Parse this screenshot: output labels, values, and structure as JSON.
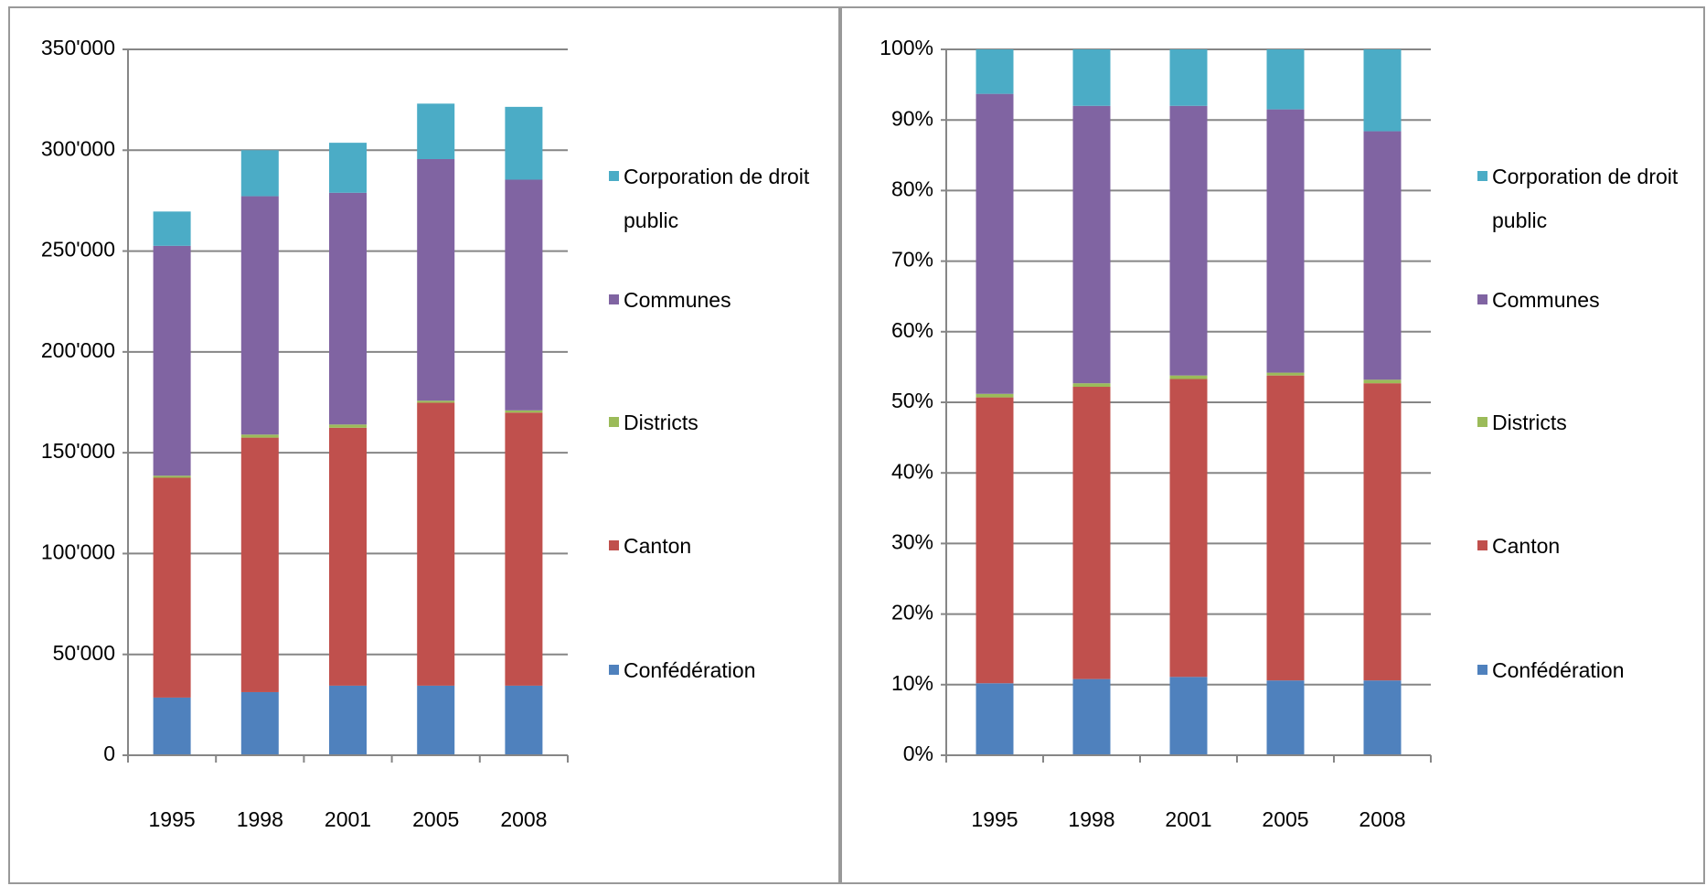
{
  "chart_data": [
    {
      "type": "bar",
      "stacked": true,
      "legend": "right",
      "grid": true,
      "categories": [
        "1995",
        "1998",
        "2001",
        "2005",
        "2008"
      ],
      "series": [
        {
          "name": "Confédération",
          "color": "#4f81bd",
          "values": [
            28600,
            31300,
            34500,
            34500,
            34500
          ]
        },
        {
          "name": "Canton",
          "color": "#c0504d",
          "values": [
            109000,
            126200,
            127900,
            140300,
            135400
          ]
        },
        {
          "name": "Districts",
          "color": "#9bbb59",
          "values": [
            1000,
            1500,
            1600,
            1000,
            1100
          ]
        },
        {
          "name": "Communes",
          "color": "#8064a2",
          "values": [
            114000,
            118200,
            114900,
            119800,
            114400
          ]
        },
        {
          "name": "Corporation de droit public",
          "color": "#4bacc6",
          "values": [
            17000,
            22800,
            24800,
            27500,
            36100
          ]
        }
      ],
      "ylim": [
        0,
        350000
      ],
      "yticks": [
        0,
        {
          "value": 50000,
          "label": "50'000"
        },
        {
          "value": 100000,
          "label": "100'000"
        },
        {
          "value": 150000,
          "label": "150'000"
        },
        {
          "value": 200000,
          "label": "200'000"
        },
        {
          "value": 250000,
          "label": "250'000"
        },
        {
          "value": 300000,
          "label": "300'000"
        },
        {
          "value": 350000,
          "label": "350'000"
        }
      ]
    },
    {
      "type": "bar",
      "stacked": true,
      "legend": "right",
      "grid": true,
      "categories": [
        "1995",
        "1998",
        "2001",
        "2005",
        "2008"
      ],
      "series": [
        {
          "name": "Confédération",
          "color": "#4f81bd",
          "values": [
            10.2,
            10.8,
            11.1,
            10.6,
            10.6
          ]
        },
        {
          "name": "Canton",
          "color": "#c0504d",
          "values": [
            40.5,
            41.4,
            42.2,
            43.2,
            42.1
          ]
        },
        {
          "name": "Districts",
          "color": "#9bbb59",
          "values": [
            0.5,
            0.5,
            0.5,
            0.4,
            0.5
          ]
        },
        {
          "name": "Communes",
          "color": "#8064a2",
          "values": [
            42.5,
            39.3,
            38.2,
            37.3,
            35.2
          ]
        },
        {
          "name": "Corporation de droit public",
          "color": "#4bacc6",
          "values": [
            6.3,
            8.0,
            8.0,
            8.5,
            11.6
          ]
        }
      ],
      "ylim": [
        0,
        100
      ],
      "yticks": [
        {
          "value": 0,
          "label": "0%"
        },
        {
          "value": 10,
          "label": "10%"
        },
        {
          "value": 20,
          "label": "20%"
        },
        {
          "value": 30,
          "label": "30%"
        },
        {
          "value": 40,
          "label": "40%"
        },
        {
          "value": 50,
          "label": "50%"
        },
        {
          "value": 60,
          "label": "60%"
        },
        {
          "value": 70,
          "label": "70%"
        },
        {
          "value": 80,
          "label": "80%"
        },
        {
          "value": 90,
          "label": "90%"
        },
        {
          "value": 100,
          "label": "100%"
        }
      ]
    }
  ]
}
